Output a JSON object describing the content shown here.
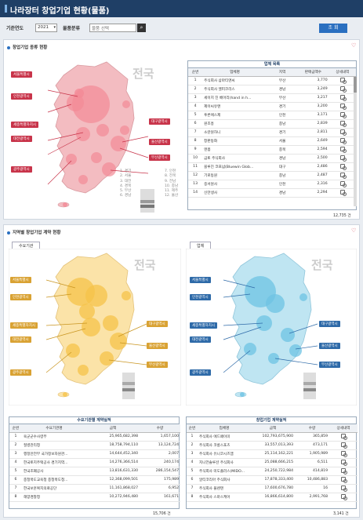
{
  "header": {
    "title": "나라장터 창업기업 현황(물품)"
  },
  "filters": {
    "year_label": "기준연도",
    "year_value": "2021",
    "category_label": "물품분류",
    "category_value": "물품 선택",
    "search_button": "조 회"
  },
  "section1": {
    "title": "창업기업 종류 현황",
    "map_label": "전국",
    "region_tags_left": [
      "서울특별시",
      "인천광역시",
      "세종특별자치시",
      "대전광역시",
      "광주광역시"
    ],
    "region_tags_right": [
      "대구광역시",
      "울산광역시",
      "부산광역시"
    ],
    "legend_list_1": [
      "1. 경기",
      "2. 서울",
      "3. 대전",
      "4. 경북",
      "5. 부산",
      "6. 경남"
    ],
    "legend_list_2": [
      "7. 인천",
      "8. 전북",
      "9. 전남",
      "10. 충남",
      "11. 제주",
      "12. 울산"
    ],
    "table_title": "업체 목록",
    "columns": [
      "순번",
      "업체명",
      "지역",
      "판매금액수",
      "상세내역"
    ],
    "rows": [
      [
        "1",
        "주식회사 삼마티엔씨",
        "부산",
        "3,770"
      ],
      [
        "2",
        "주식회사 엘피코리스",
        "경남",
        "3,249"
      ],
      [
        "3",
        "세이지 진 베어리(hand in h...",
        "부산",
        "3,217"
      ],
      [
        "4",
        "제이씨유앤",
        "경기",
        "3,200"
      ],
      [
        "5",
        "푸른에스제",
        "인천",
        "3,171"
      ],
      [
        "6",
        "원조흥",
        "충남",
        "2,839"
      ],
      [
        "7",
        "소란원하니",
        "경기",
        "2,811"
      ],
      [
        "8",
        "창판동화",
        "서울",
        "2,649"
      ],
      [
        "9",
        "엔봄",
        "충북",
        "2,594"
      ],
      [
        "10",
        "금토 주식회사",
        "경남",
        "2,500"
      ],
      [
        "11",
        "블루진 코프넘(Bluewin Glob...",
        "대구",
        "2,486"
      ],
      [
        "12",
        "기로동원",
        "충남",
        "2,487"
      ],
      [
        "13",
        "중서원사",
        "인천",
        "2,316"
      ],
      [
        "14",
        "신만생사",
        "경남",
        "2,294"
      ]
    ],
    "total": "12,735 건"
  },
  "section2": {
    "title": "지역별 창업기업 계약 현황",
    "left_tab": "수요기관",
    "right_tab": "업체",
    "map_label": "전국",
    "left_table_title": "수요기관별 계약실적",
    "left_columns": [
      "순번",
      "수요기관명",
      "금액",
      "수량"
    ],
    "left_rows": [
      [
        "1",
        "육군군수사령부",
        "25,965,682,398",
        "1,657,100"
      ],
      [
        "2",
        "질병관리청",
        "18,758,794,110",
        "13,124,724"
      ],
      [
        "3",
        "행정안전부 국가정보자원관...",
        "14,644,452,340",
        "2,007"
      ],
      [
        "4",
        "한국토지주택공사 경기지역...",
        "14,276,366,514",
        "240,174"
      ],
      [
        "5",
        "한국조폐공사",
        "13,816,631,330",
        "286,154,547"
      ],
      [
        "6",
        "충청북도교육청 충청북도청...",
        "12,368,099,501",
        "175,989"
      ],
      [
        "7",
        "한국보훈복지의료공단",
        "11,161,868,027",
        "6,952"
      ],
      [
        "8",
        "해양경찰청",
        "10,272,946,480",
        "161,671"
      ]
    ],
    "left_total": "15,706 건",
    "right_table_title": "창업기업 계약실적",
    "right_columns": [
      "순번",
      "업체명",
      "금액",
      "수량",
      "상세내역"
    ],
    "right_rows": [
      [
        "1",
        "주식회사 에드페이미",
        "102,793,675,900",
        "365,859"
      ],
      [
        "2",
        "주식회사 코롱스포츠",
        "33,557,013,393",
        "473,171"
      ],
      [
        "3",
        "주식회사 유니코시즈엠",
        "25,114,162,221",
        "1,905,989"
      ],
      [
        "4",
        "지니언솔루션 주식회사",
        "25,088,666,215",
        "6,511"
      ],
      [
        "5",
        "주식회사 미도플러스(MIDO...",
        "24,250,722,984",
        "414,819"
      ],
      [
        "6",
        "알티코리아 주식회사",
        "17,878,333,400",
        "10,486,883"
      ],
      [
        "7",
        "주식회사 플렌텐",
        "17,600,676,780",
        "16"
      ],
      [
        "8",
        "주식회사 스마스케어",
        "16,866,614,800",
        "2,991,768"
      ]
    ],
    "right_total": "3,141 건"
  },
  "colors": {
    "title_bg": "#1f3f66",
    "accent": "#2a6fc0",
    "red_bubble": "#f28a96",
    "orange_bubble": "#f6c34a",
    "blue_bubble": "#6ec3e3"
  }
}
